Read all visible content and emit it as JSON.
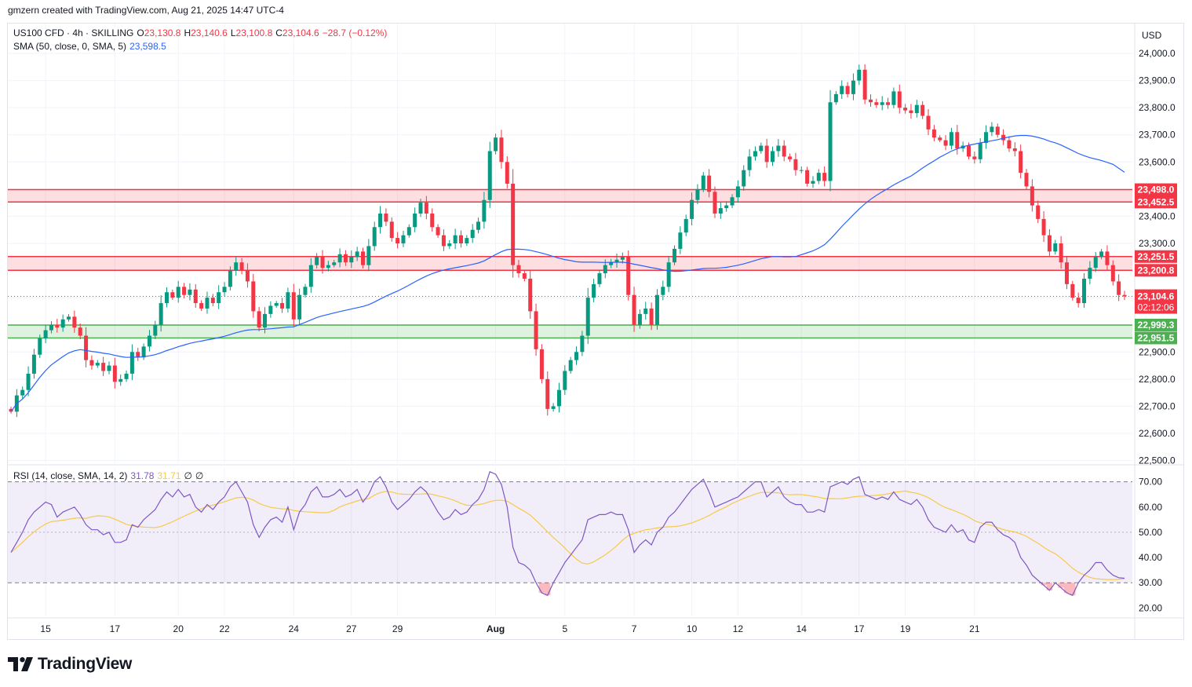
{
  "header": {
    "caption": "gmzern created with TradingView.com, Aug 21, 2025 14:47 UTC-4"
  },
  "symbol": {
    "name": "US100 CFD · 4h · SKILLING",
    "open_label": "O",
    "open": "23,130.8",
    "high_label": "H",
    "high": "23,140.6",
    "low_label": "L",
    "low": "23,100.8",
    "close_label": "C",
    "close": "23,104.6",
    "change": "−28.7 (−0.12%)"
  },
  "sma": {
    "label": "SMA (50, close, 0, SMA, 5)",
    "value": "23,598.5",
    "color": "#2962ff"
  },
  "rsi": {
    "label": "RSI (14, close, SMA, 14, 2)",
    "value": "31.78",
    "ma_value": "31.71",
    "extra1": "∅",
    "extra2": "∅",
    "line_color": "#7e57c2",
    "ma_color": "#f7c948"
  },
  "currency": "USD",
  "brand": {
    "name": "TradingView"
  },
  "colors": {
    "up": "#089981",
    "down": "#f23645",
    "resistance_zone": "#f23645",
    "support_zone": "#4caf50"
  },
  "chart_data": {
    "type": "candlestick",
    "x_ticks": [
      {
        "label": "15",
        "i": 6
      },
      {
        "label": "17",
        "i": 18
      },
      {
        "label": "20",
        "i": 29
      },
      {
        "label": "22",
        "i": 37
      },
      {
        "label": "24",
        "i": 49
      },
      {
        "label": "27",
        "i": 59
      },
      {
        "label": "29",
        "i": 67
      },
      {
        "label": "Aug",
        "i": 84
      },
      {
        "label": "5",
        "i": 96
      },
      {
        "label": "7",
        "i": 108
      },
      {
        "label": "10",
        "i": 118
      },
      {
        "label": "12",
        "i": 126
      },
      {
        "label": "14",
        "i": 137
      },
      {
        "label": "17",
        "i": 147
      },
      {
        "label": "19",
        "i": 155
      },
      {
        "label": "21",
        "i": 167
      }
    ],
    "y_ticks": [
      "24,000.0",
      "23,900.0",
      "23,800.0",
      "23,700.0",
      "23,600.0",
      "23,500.0",
      "23,400.0",
      "23,300.0",
      "23,200.0",
      "23,100.0",
      "23,000.0",
      "22,900.0",
      "22,800.0",
      "22,700.0",
      "22,600.0",
      "22,500.0"
    ],
    "y_range": [
      22490,
      24110
    ],
    "zones": [
      {
        "low": 23452.5,
        "high": 23498.0,
        "type": "resistance",
        "labels": [
          "23,498.0",
          "23,452.5"
        ]
      },
      {
        "low": 23200.8,
        "high": 23251.5,
        "type": "resistance",
        "labels": [
          "23,251.5",
          "23,200.8"
        ]
      },
      {
        "low": 22951.5,
        "high": 22999.3,
        "type": "support",
        "labels": [
          "22,999.3",
          "22,951.5"
        ]
      }
    ],
    "last_price": {
      "value": 23104.6,
      "label": "23,104.6",
      "countdown": "02:12:06"
    },
    "close": [
      22680,
      22740,
      22760,
      22820,
      22890,
      22950,
      22980,
      23000,
      22990,
      23020,
      23030,
      22990,
      22960,
      22870,
      22850,
      22860,
      22830,
      22850,
      22790,
      22800,
      22820,
      22900,
      22880,
      22920,
      22960,
      23000,
      23080,
      23120,
      23100,
      23140,
      23110,
      23130,
      23080,
      23060,
      23100,
      23080,
      23120,
      23140,
      23200,
      23230,
      23200,
      23160,
      23050,
      22990,
      23040,
      23070,
      23080,
      23060,
      23120,
      23020,
      23110,
      23140,
      23220,
      23250,
      23210,
      23220,
      23230,
      23260,
      23230,
      23250,
      23270,
      23220,
      23290,
      23360,
      23410,
      23380,
      23320,
      23300,
      23330,
      23360,
      23410,
      23450,
      23410,
      23360,
      23330,
      23290,
      23300,
      23330,
      23300,
      23320,
      23350,
      23380,
      23460,
      23640,
      23690,
      23600,
      23520,
      23220,
      23190,
      23170,
      23050,
      22910,
      22800,
      22690,
      22700,
      22760,
      22830,
      22870,
      22900,
      22960,
      23100,
      23150,
      23190,
      23220,
      23230,
      23240,
      23250,
      23110,
      23000,
      23040,
      23060,
      23000,
      23110,
      23140,
      23230,
      23280,
      23340,
      23390,
      23460,
      23500,
      23550,
      23490,
      23410,
      23430,
      23440,
      23470,
      23510,
      23570,
      23620,
      23640,
      23660,
      23600,
      23640,
      23660,
      23620,
      23610,
      23570,
      23570,
      23520,
      23530,
      23560,
      23530,
      23820,
      23850,
      23880,
      23850,
      23900,
      23940,
      23830,
      23820,
      23810,
      23820,
      23810,
      23860,
      23800,
      23790,
      23780,
      23810,
      23770,
      23720,
      23690,
      23680,
      23660,
      23710,
      23650,
      23660,
      23620,
      23610,
      23670,
      23710,
      23730,
      23700,
      23680,
      23650,
      23640,
      23560,
      23510,
      23440,
      23390,
      23330,
      23270,
      23300,
      23230,
      23150,
      23100,
      23080,
      23170,
      23210,
      23250,
      23270,
      23220,
      23160,
      23110,
      23104.6
    ],
    "rsi": [
      42,
      46,
      50,
      55,
      58,
      60,
      62,
      61,
      56,
      58,
      59,
      60,
      57,
      53,
      51,
      51,
      49,
      50,
      46,
      46,
      47,
      53,
      52,
      55,
      57,
      59,
      63,
      66,
      64,
      67,
      64,
      65,
      60,
      58,
      61,
      59,
      62,
      64,
      68,
      70,
      66,
      62,
      53,
      48,
      52,
      55,
      56,
      54,
      60,
      51,
      58,
      61,
      66,
      68,
      64,
      64,
      65,
      67,
      64,
      65,
      67,
      62,
      65,
      70,
      72,
      68,
      62,
      59,
      61,
      63,
      66,
      68,
      66,
      62,
      58,
      55,
      56,
      59,
      57,
      58,
      61,
      63,
      67,
      74,
      73,
      69,
      60,
      44,
      38,
      37,
      35,
      30,
      26,
      25,
      30,
      34,
      38,
      41,
      44,
      47,
      55,
      56,
      57,
      57,
      58,
      57,
      57,
      51,
      42,
      45,
      47,
      45,
      50,
      52,
      56,
      58,
      61,
      64,
      67,
      69,
      71,
      66,
      60,
      61,
      62,
      63,
      64,
      66,
      68,
      70,
      70,
      64,
      66,
      68,
      64,
      62,
      61,
      61,
      58,
      58,
      59,
      58,
      68,
      69,
      70,
      69,
      71,
      72,
      65,
      64,
      63,
      64,
      63,
      66,
      63,
      62,
      61,
      63,
      60,
      55,
      52,
      51,
      50,
      53,
      50,
      51,
      47,
      46,
      52,
      54,
      54,
      51,
      49,
      48,
      46,
      40,
      37,
      33,
      31,
      29,
      27,
      30,
      28,
      26,
      25,
      30,
      33,
      35,
      38,
      38,
      35,
      33,
      32,
      31.78
    ],
    "rsi_range": [
      17,
      73
    ],
    "rsi_ticks": [
      "70.00",
      "60.00",
      "50.00",
      "40.00",
      "30.00",
      "20.00"
    ],
    "rsi_band": [
      30,
      70
    ]
  }
}
